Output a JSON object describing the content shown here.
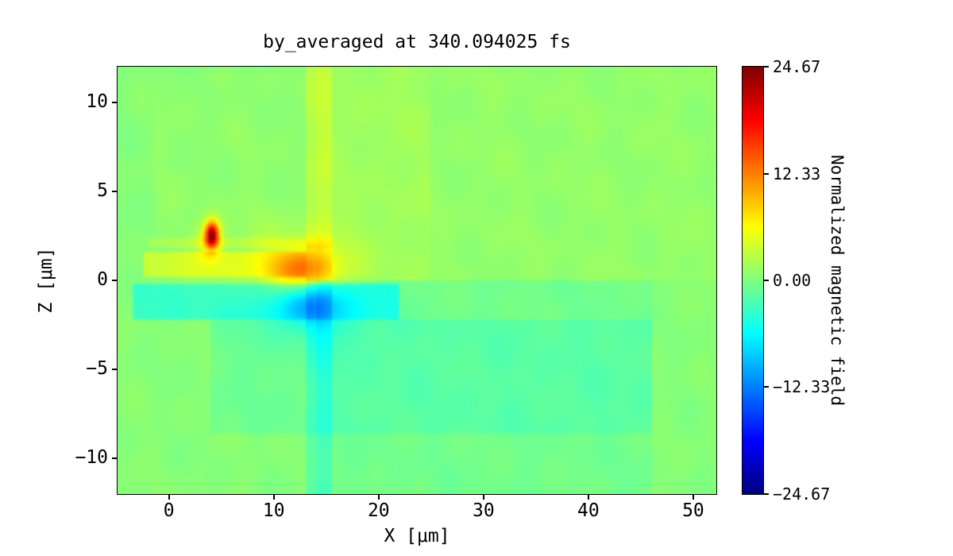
{
  "chart_data": {
    "type": "heatmap",
    "title": "by_averaged at 340.094025 fs",
    "xlabel": "X [μm]",
    "ylabel": "Z [μm]",
    "colorbar_label": "Normalized magnetic field",
    "xlim": [
      -4.9,
      52.2
    ],
    "zlim": [
      -12,
      12
    ],
    "vmin": -24.67,
    "vmax": 24.67,
    "grid": "off",
    "legend": "none",
    "x_ticks": [
      {
        "value": 0,
        "label": "0"
      },
      {
        "value": 10,
        "label": "10"
      },
      {
        "value": 20,
        "label": "20"
      },
      {
        "value": 30,
        "label": "30"
      },
      {
        "value": 40,
        "label": "40"
      },
      {
        "value": 50,
        "label": "50"
      }
    ],
    "z_ticks": [
      {
        "value": 10,
        "label": "10"
      },
      {
        "value": 5,
        "label": "5"
      },
      {
        "value": 0,
        "label": "0"
      },
      {
        "value": -5,
        "label": "−5"
      },
      {
        "value": -10,
        "label": "−10"
      }
    ],
    "colorbar_ticks": [
      {
        "value": 24.67,
        "label": "24.67"
      },
      {
        "value": 12.33,
        "label": "12.33"
      },
      {
        "value": 0,
        "label": "0.00"
      },
      {
        "value": -12.33,
        "label": "−12.33"
      },
      {
        "value": -24.67,
        "label": "−24.67"
      }
    ],
    "colormap": "jet",
    "colormap_stops": [
      {
        "t": 0.0,
        "color": "#00007f"
      },
      {
        "t": 0.125,
        "color": "#0000ff"
      },
      {
        "t": 0.375,
        "color": "#00ffff"
      },
      {
        "t": 0.625,
        "color": "#ffff00"
      },
      {
        "t": 0.875,
        "color": "#ff0000"
      },
      {
        "t": 1.0,
        "color": "#7f0000"
      }
    ],
    "field_model": {
      "background": 0.4,
      "rects": [
        {
          "x": [
            14,
            46
          ],
          "z": [
            -12,
            0
          ],
          "dv": -1.0
        },
        {
          "x": [
            14,
            52.2
          ],
          "z": [
            0,
            12
          ],
          "dv": 0.6
        },
        {
          "x": [
            13,
            15.6
          ],
          "z": [
            0,
            12
          ],
          "dv": 2.2
        },
        {
          "x": [
            13,
            15.6
          ],
          "z": [
            -12,
            0
          ],
          "dv": -2.2
        },
        {
          "x": [
            -2.5,
            13
          ],
          "z": [
            0.3,
            1.7
          ],
          "dv": 3.2
        },
        {
          "x": [
            -3.5,
            22
          ],
          "z": [
            -2.3,
            -0.25
          ],
          "dv": -3.8
        },
        {
          "x": [
            4,
            46
          ],
          "z": [
            -8.5,
            -2.3
          ],
          "dv": -1.2
        },
        {
          "x": [
            -1.5,
            13
          ],
          "z": [
            2,
            11.5
          ],
          "dv": 0.4
        },
        {
          "x": [
            -2,
            15.6
          ],
          "z": [
            1.8,
            2.35
          ],
          "dv": 1.3
        },
        {
          "x": [
            15.6,
            25
          ],
          "z": [
            0,
            12
          ],
          "dv": 0.6
        }
      ],
      "blobs": [
        {
          "amp": 8,
          "x": 12.8,
          "z": 0.55,
          "sx": 2.1,
          "sz": 0.8
        },
        {
          "amp": 3,
          "x": 12.0,
          "z": 0.8,
          "sx": 4.2,
          "sz": 1.5
        },
        {
          "amp": -5.5,
          "x": 13.2,
          "z": -1.35,
          "sx": 2.1,
          "sz": 0.8
        },
        {
          "amp": -2.5,
          "x": 13.5,
          "z": -1.7,
          "sx": 4.2,
          "sz": 1.5
        },
        {
          "amp": 21,
          "x": 4.1,
          "z": 2.55,
          "sx": 0.45,
          "sz": 0.5
        },
        {
          "amp": 4,
          "x": 3.8,
          "z": 2.1,
          "sx": 0.9,
          "sz": 0.9
        }
      ],
      "noise": {
        "amp1": 0.35,
        "amp2": 0.25
      }
    },
    "notable_features": [
      {
        "desc": "intense localized positive spot",
        "x": 4.1,
        "z": 2.5,
        "value": 21
      },
      {
        "desc": "positive (orange) lobe",
        "x": 12.8,
        "z": 0.6,
        "value": 14
      },
      {
        "desc": "negative (blue) lobe",
        "x": 13.2,
        "z": -1.4,
        "value": -12
      },
      {
        "desc": "vertical interface stripe",
        "x": 14,
        "z": 0,
        "value": 2
      }
    ]
  }
}
